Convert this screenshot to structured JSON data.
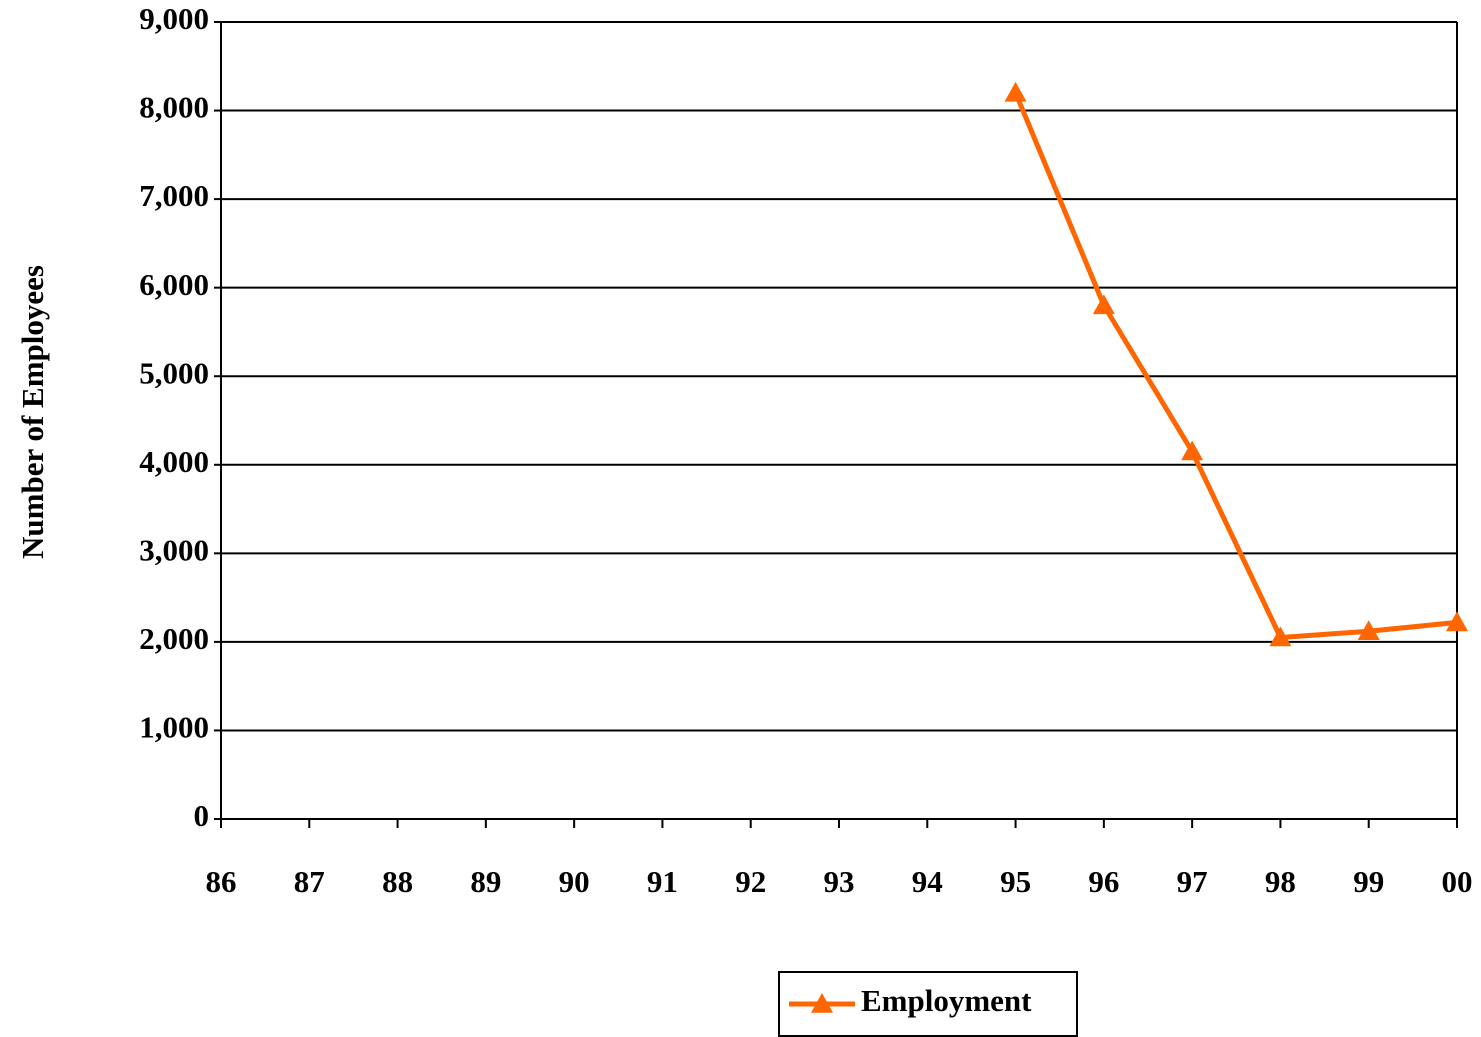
{
  "chart_data": {
    "type": "line",
    "y_label": "Number of Employees",
    "categories": [
      "86",
      "87",
      "88",
      "89",
      "90",
      "91",
      "92",
      "93",
      "94",
      "95",
      "96",
      "97",
      "98",
      "99",
      "00"
    ],
    "series": [
      {
        "name": "Employment",
        "color": "#ff6600",
        "values": [
          null,
          null,
          null,
          null,
          null,
          null,
          null,
          null,
          null,
          8200,
          5800,
          4150,
          2050,
          2120,
          2220
        ]
      }
    ],
    "ylim": [
      0,
      9000
    ],
    "yticks": [
      0,
      {
        "value": 1000,
        "label": "1,000"
      },
      {
        "value": 2000,
        "label": "2,000"
      },
      {
        "value": 3000,
        "label": "3,000"
      },
      {
        "value": 4000,
        "label": "4,000"
      },
      {
        "value": 5000,
        "label": "5,000"
      },
      {
        "value": 6000,
        "label": "6,000"
      },
      {
        "value": 7000,
        "label": "7,000"
      },
      {
        "value": 8000,
        "label": "8,000"
      },
      {
        "value": 9000,
        "label": "9,000"
      }
    ],
    "grid": true,
    "legend": "bottom"
  }
}
